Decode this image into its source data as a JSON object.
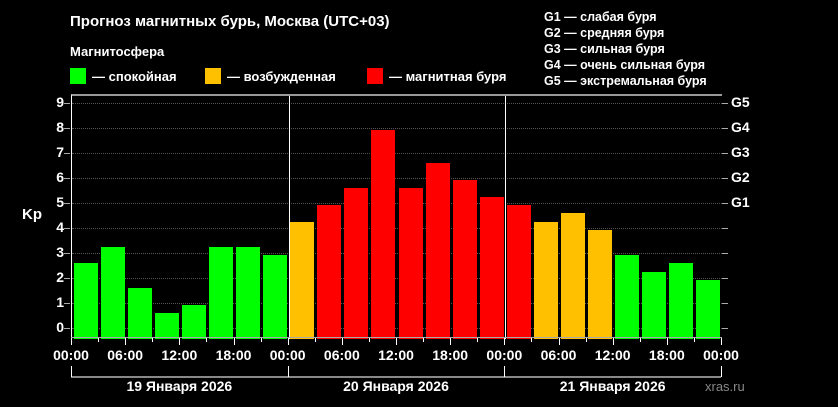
{
  "header": {
    "title": "Прогноз магнитных бурь, Москва (UTC+03)",
    "subtitle": "Магнитосфера"
  },
  "legend": [
    {
      "label": "— спокойная",
      "color": "#00ff00"
    },
    {
      "label": "— возбужденная",
      "color": "#ffc000"
    },
    {
      "label": "— магнитная буря",
      "color": "#ff0000"
    }
  ],
  "g_scale": [
    "G1 — слабая буря",
    "G2 — средняя буря",
    "G3 — сильная буря",
    "G4 — очень сильная буря",
    "G5 — экстремальная буря"
  ],
  "watermark": "xras.ru",
  "chart_data": {
    "type": "bar",
    "title": "Прогноз магнитных бурь, Москва (UTC+03)",
    "ylabel": "Kp",
    "ylim": [
      0,
      9
    ],
    "yticks": [
      "0",
      "1",
      "2",
      "3",
      "4",
      "5",
      "6",
      "7",
      "8",
      "9"
    ],
    "right_ticks": [
      {
        "kp": 5,
        "label": "G1"
      },
      {
        "kp": 6,
        "label": "G2"
      },
      {
        "kp": 7,
        "label": "G3"
      },
      {
        "kp": 8,
        "label": "G4"
      },
      {
        "kp": 9,
        "label": "G5"
      }
    ],
    "xtick_labels": [
      "00:00",
      "06:00",
      "12:00",
      "18:00",
      "00:00",
      "06:00",
      "12:00",
      "18:00",
      "00:00",
      "06:00",
      "12:00",
      "18:00",
      "00:00"
    ],
    "days": [
      "19 Января 2026",
      "20 Января 2026",
      "21 Января 2026"
    ],
    "grid": true,
    "interval_hours": 3,
    "values": [
      2.67,
      3.33,
      1.67,
      0.67,
      1.0,
      3.33,
      3.33,
      3.0,
      4.33,
      5.0,
      5.67,
      8.0,
      5.67,
      6.67,
      6.0,
      5.33,
      5.0,
      4.33,
      4.67,
      4.0,
      3.0,
      2.33,
      2.67,
      2.0
    ],
    "colors": {
      "quiet": "#00ff00",
      "active": "#ffc000",
      "storm": "#ff0000"
    }
  }
}
